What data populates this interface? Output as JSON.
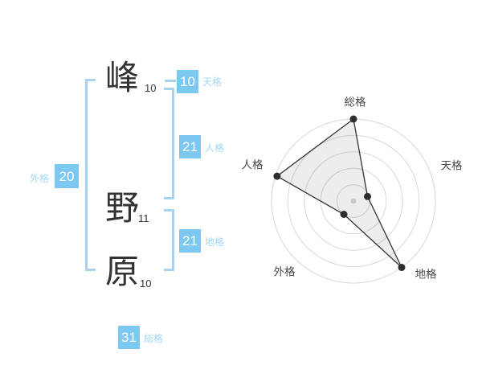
{
  "colors": {
    "badge_blue": "#7cc8f0",
    "category_label_blue": "#a3d6f3",
    "bracket_blue": "#a9d2ee",
    "ink": "#333333",
    "radar_grid": "#d8d8d8",
    "radar_line": "#333333",
    "radar_point": "#2d2d2d",
    "radar_fill": "rgba(0,0,0,0.07)",
    "radar_label": "#4a4a4a",
    "radar_center_dot": "#c8c8c8"
  },
  "name_chars": [
    {
      "char": "峰",
      "strokes": "10"
    },
    {
      "char": "野",
      "strokes": "11"
    },
    {
      "char": "原",
      "strokes": "10"
    }
  ],
  "badges": {
    "tenkaku": {
      "value": "10",
      "label": "天格"
    },
    "jinkaku": {
      "value": "21",
      "label": "人格"
    },
    "chikaku": {
      "value": "21",
      "label": "地格"
    },
    "gaikaku": {
      "value": "20",
      "label": "外格"
    },
    "soukaku": {
      "value": "31",
      "label": "総格"
    }
  },
  "chart_data": {
    "type": "radar",
    "axes": [
      "総格",
      "天格",
      "地格",
      "外格",
      "人格"
    ],
    "values": [
      5,
      0.9,
      5,
      1,
      4.9
    ],
    "max": 5,
    "rings": 5,
    "grid_shape": "concentric-circles",
    "start_angle_deg": -90,
    "direction": "clockwise",
    "legend": false,
    "title": ""
  }
}
